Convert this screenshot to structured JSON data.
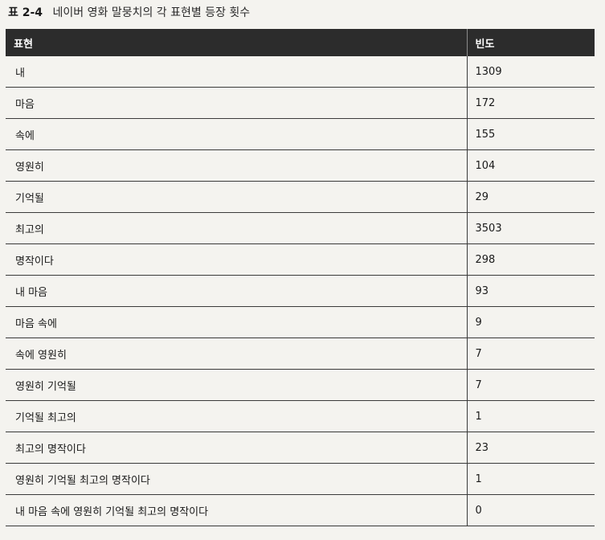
{
  "caption": {
    "number": "표 2-4",
    "text": "네이버 영화 말뭉치의 각 표현별 등장 횟수"
  },
  "table": {
    "headers": [
      "표현",
      "빈도"
    ],
    "rows": [
      [
        "내",
        "1309"
      ],
      [
        "마음",
        "172"
      ],
      [
        "속에",
        "155"
      ],
      [
        "영원히",
        "104"
      ],
      [
        "기억될",
        "29"
      ],
      [
        "최고의",
        "3503"
      ],
      [
        "명작이다",
        "298"
      ],
      [
        "내 마음",
        "93"
      ],
      [
        "마음 속에",
        "9"
      ],
      [
        "속에 영원히",
        "7"
      ],
      [
        "영원히 기억될",
        "7"
      ],
      [
        "기억될 최고의",
        "1"
      ],
      [
        "최고의 명작이다",
        "23"
      ],
      [
        "영원히 기억될 최고의 명작이다",
        "1"
      ],
      [
        "내 마음 속에 영원히 기억될 최고의 명작이다",
        "0"
      ]
    ]
  }
}
